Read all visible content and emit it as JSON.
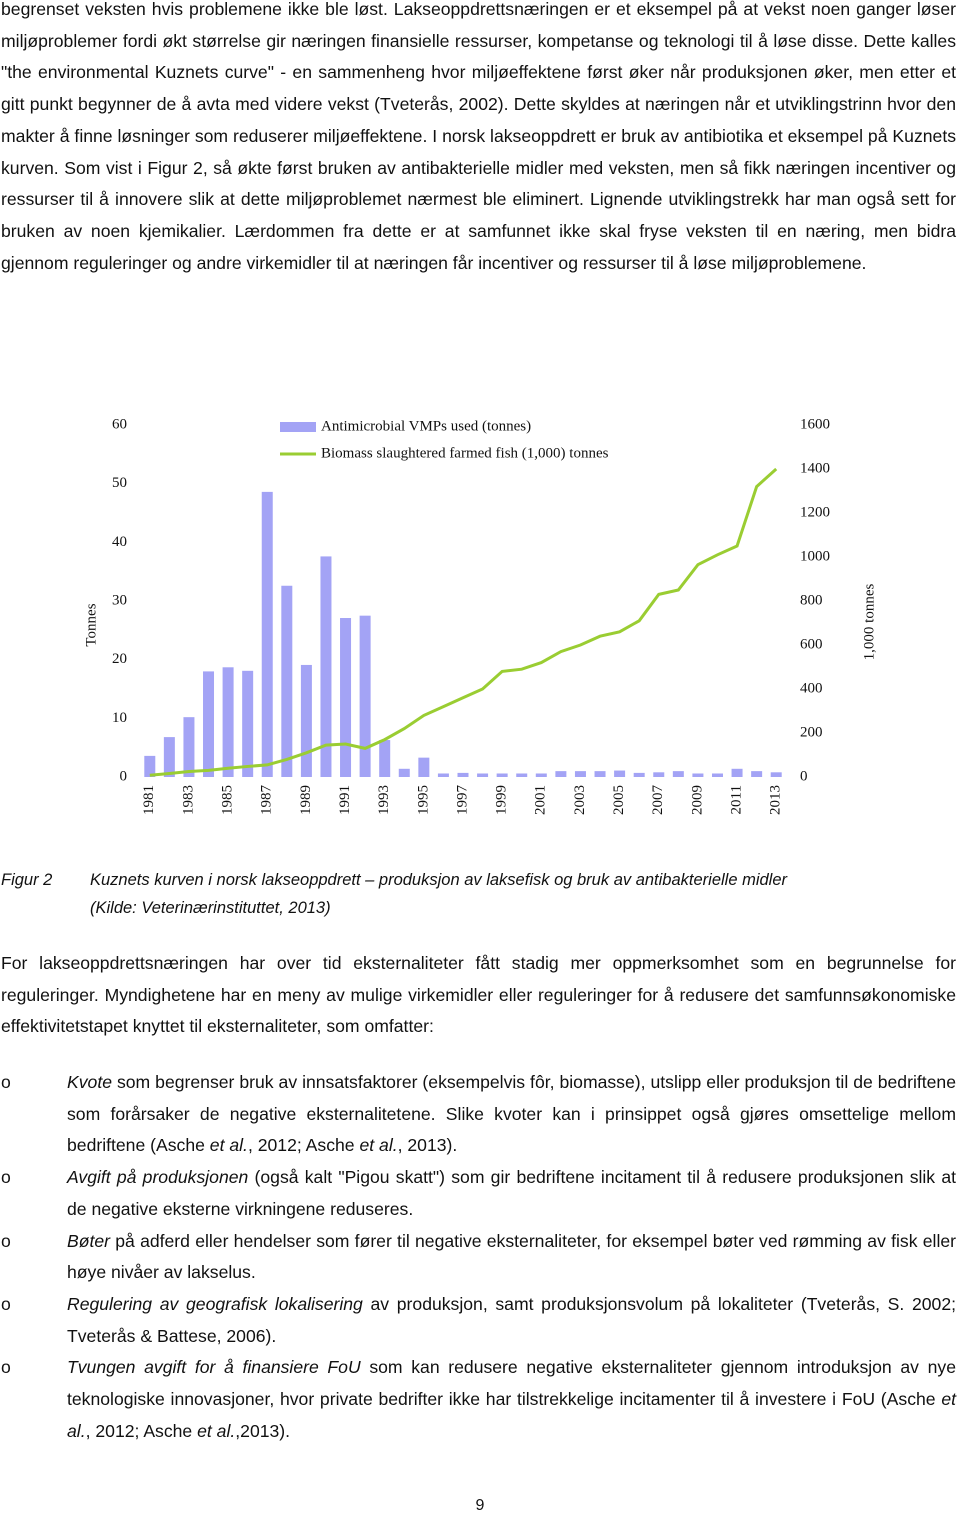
{
  "paragraphs": [
    "begrenset veksten hvis problemene ikke ble løst. Lakseoppdrettsnæringen er et eksempel på at vekst noen ganger løser miljøproblemer fordi økt størrelse gir næringen finansielle ressurser, kompetanse og teknologi til å løse disse. Dette kalles \"the environmental Kuznets curve\" - en sammenheng hvor miljøeffektene først øker når produksjonen øker, men etter et gitt punkt begynner de å avta med videre vekst (Tveterås, 2002). Dette skyldes at næringen når et utviklingstrinn hvor den makter å finne løsninger som reduserer miljøeffektene. I norsk lakseoppdrett er bruk av antibiotika et eksempel på Kuznets kurven. Som vist i Figur 2, så økte først bruken av antibakterielle midler med veksten, men så fikk næringen incentiver og ressurser til å innovere slik at dette miljøproblemet nærmest ble eliminert. Lignende utviklingstrekk har man også sett for bruken av noen kjemikalier. Lærdommen fra dette er at samfunnet ikke skal fryse veksten til en næring, men bidra gjennom reguleringer og andre virkemidler til at næringen får incentiver og ressurser til å løse miljøproblemene.",
    "For lakseoppdrettsnæringen har over tid eksternaliteter fått stadig mer oppmerksomhet som en begrunnelse for reguleringer. Myndighetene har en meny av mulige virkemidler eller reguleringer for å redusere det samfunnsøkonomiske effektivitetstapet knyttet til eksternaliteter, som omfatter:"
  ],
  "chart_data": {
    "type": "bar_line",
    "categories": [
      "1981",
      null,
      "1983",
      null,
      "1985",
      null,
      "1987",
      null,
      "1989",
      null,
      "1991",
      null,
      "1993",
      null,
      "1995",
      null,
      "1997",
      null,
      "1999",
      null,
      "2001",
      null,
      "2003",
      null,
      "2005",
      null,
      "2007",
      null,
      "2009",
      null,
      "2011",
      null,
      "2013"
    ],
    "series": [
      {
        "name": "Antimicrobial VMPs used (tonnes)",
        "color": "#a3a3f5",
        "type": "bar",
        "values": [
          3.6,
          6.8,
          10.2,
          18,
          18.7,
          18.1,
          48.6,
          32.6,
          19.1,
          37.6,
          27.1,
          27.5,
          6.3,
          1.4,
          3.3,
          0.6,
          0.7,
          0.6,
          0.6,
          0.6,
          0.6,
          1.0,
          1.0,
          1.0,
          1.1,
          0.7,
          0.8,
          1.0,
          0.6,
          0.6,
          1.4,
          1.0,
          0.8
        ]
      },
      {
        "name": "Biomass slaughtered farmed fish (1,000) tonnes",
        "color": "#9acd32",
        "type": "line",
        "axis": "y2",
        "values": [
          8,
          16,
          25,
          30,
          40,
          48,
          55,
          80,
          110,
          145,
          150,
          130,
          170,
          220,
          280,
          320,
          360,
          400,
          480,
          490,
          520,
          570,
          600,
          640,
          660,
          710,
          830,
          850,
          965,
          1010,
          1050,
          1320,
          1400
        ]
      }
    ],
    "ylabel": "Tonnes",
    "y2label": "1,000 tonnes",
    "ylim": [
      0,
      60
    ],
    "yticks": [
      0,
      10,
      20,
      30,
      40,
      50,
      60
    ],
    "y2lim": [
      0,
      1600
    ],
    "y2ticks": [
      0,
      200,
      400,
      600,
      800,
      1000,
      1200,
      1400,
      1600
    ]
  },
  "caption": {
    "label": "Figur 2",
    "lines": [
      "Kuznets kurven i norsk lakseoppdrett – produksjon av laksefisk og bruk av antibakterielle midler",
      "(Kilde: Veterinærinstituttet, 2013)"
    ]
  },
  "list": {
    "marker": "o",
    "items": [
      [
        {
          "text": "Kvote",
          "italic": true
        },
        {
          "text": " som begrenser bruk av innsatsfaktorer (eksempelvis fôr, biomasse), utslipp eller produksjon til de bedriftene som forårsaker de negative eksternalitetene. Slike kvoter kan i prinsippet også gjøres omsettelige mellom bedriftene (Asche "
        },
        {
          "text": "et al.",
          "italic": true
        },
        {
          "text": ", 2012; Asche "
        },
        {
          "text": "et al.",
          "italic": true
        },
        {
          "text": ", 2013)."
        }
      ],
      [
        {
          "text": "Avgift på produksjonen",
          "italic": true
        },
        {
          "text": " (også kalt \"Pigou skatt\") som gir bedriftene incitament til å redusere produksjonen slik at de negative eksterne virkningene reduseres."
        }
      ],
      [
        {
          "text": "Bøter",
          "italic": true
        },
        {
          "text": " på adferd eller hendelser som fører til negative eksternaliteter, for eksempel bøter ved rømming av fisk eller høye nivåer av lakselus."
        }
      ],
      [
        {
          "text": "Regulering av geografisk lokalisering",
          "italic": true
        },
        {
          "text": " av produksjon, samt produksjonsvolum på lokaliteter (Tveterås, S. 2002; Tveterås & Battese, 2006)."
        }
      ],
      [
        {
          "text": "Tvungen avgift for å finansiere FoU",
          "italic": true
        },
        {
          "text": " som kan redusere negative eksternaliteter gjennom introduksjon av nye teknologiske innovasjoner, hvor private bedrifter ikke har tilstrekkelige incitamenter til å investere i FoU (Asche "
        },
        {
          "text": "et al.",
          "italic": true
        },
        {
          "text": ", 2012; Asche "
        },
        {
          "text": "et al.",
          "italic": true
        },
        {
          "text": ",2013)."
        }
      ]
    ]
  },
  "page_number": "9"
}
